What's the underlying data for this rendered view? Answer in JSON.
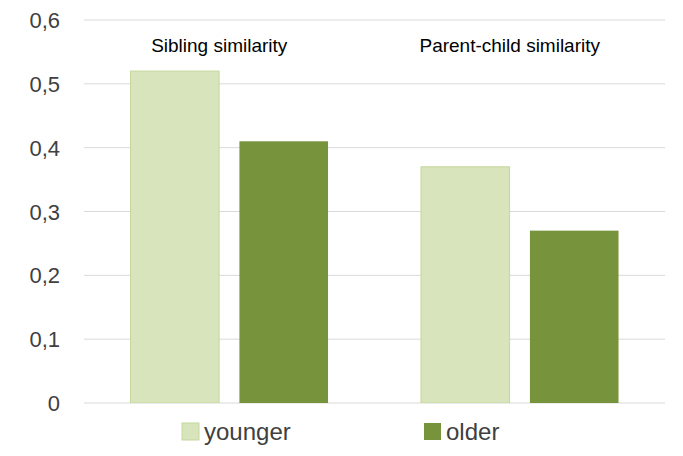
{
  "chart_data": {
    "type": "bar",
    "categories": [
      "Sibling similarity",
      "Parent-child similarity"
    ],
    "series": [
      {
        "name": "younger",
        "color": "#d8e4bc",
        "values": [
          0.52,
          0.37
        ]
      },
      {
        "name": "older",
        "color": "#77933c",
        "values": [
          0.41,
          0.27
        ]
      }
    ],
    "ylim": [
      0,
      0.6
    ],
    "yticks": [
      0,
      {
        "value": 0.1,
        "label": "0,1"
      },
      {
        "value": 0.2,
        "label": "0,2"
      },
      {
        "value": 0.3,
        "label": "0,3"
      },
      {
        "value": 0.4,
        "label": "0,4"
      },
      {
        "value": 0.5,
        "label": "0,5"
      },
      {
        "value": 0.6,
        "label": "0,6"
      }
    ],
    "grid": true,
    "legend": "bottom"
  }
}
